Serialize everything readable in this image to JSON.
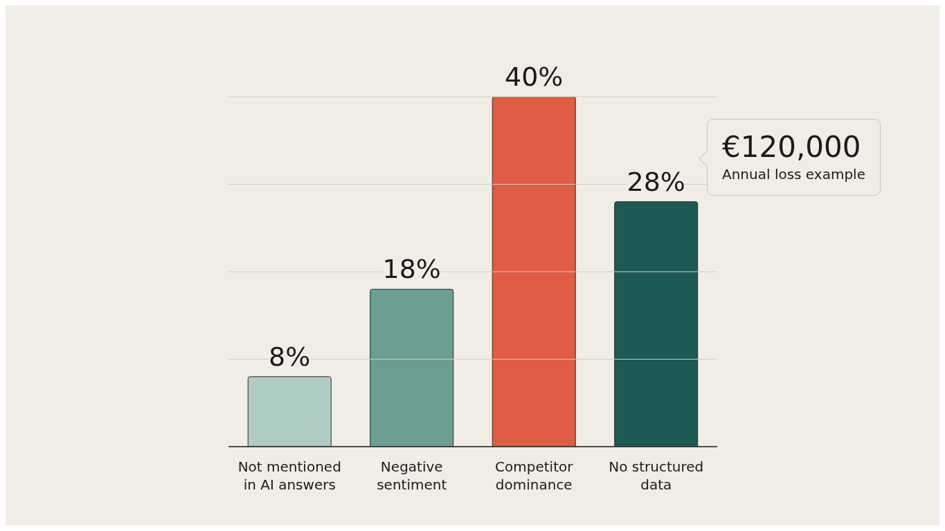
{
  "chart_data": {
    "type": "bar",
    "categories": [
      "Not mentioned in AI answers",
      "Negative sentiment",
      "Competitor dominance",
      "No structured data"
    ],
    "values": [
      8,
      18,
      40,
      28
    ],
    "colors": [
      "#aecbc4",
      "#6b9e93",
      "#e05d44",
      "#1e5a55"
    ],
    "value_labels": [
      "8%",
      "18%",
      "40%",
      "28%"
    ],
    "ylim": [
      0,
      40
    ],
    "yticks": [
      {
        "value": 0,
        "label": null
      },
      {
        "value": 10,
        "label": null
      },
      {
        "value": 20,
        "label": null
      },
      {
        "value": 30,
        "label": null
      },
      {
        "value": 40,
        "label": null
      }
    ],
    "tick_labels": "x",
    "grid": "y",
    "annotations": [
      "€120,000",
      "Annual loss example"
    ]
  }
}
